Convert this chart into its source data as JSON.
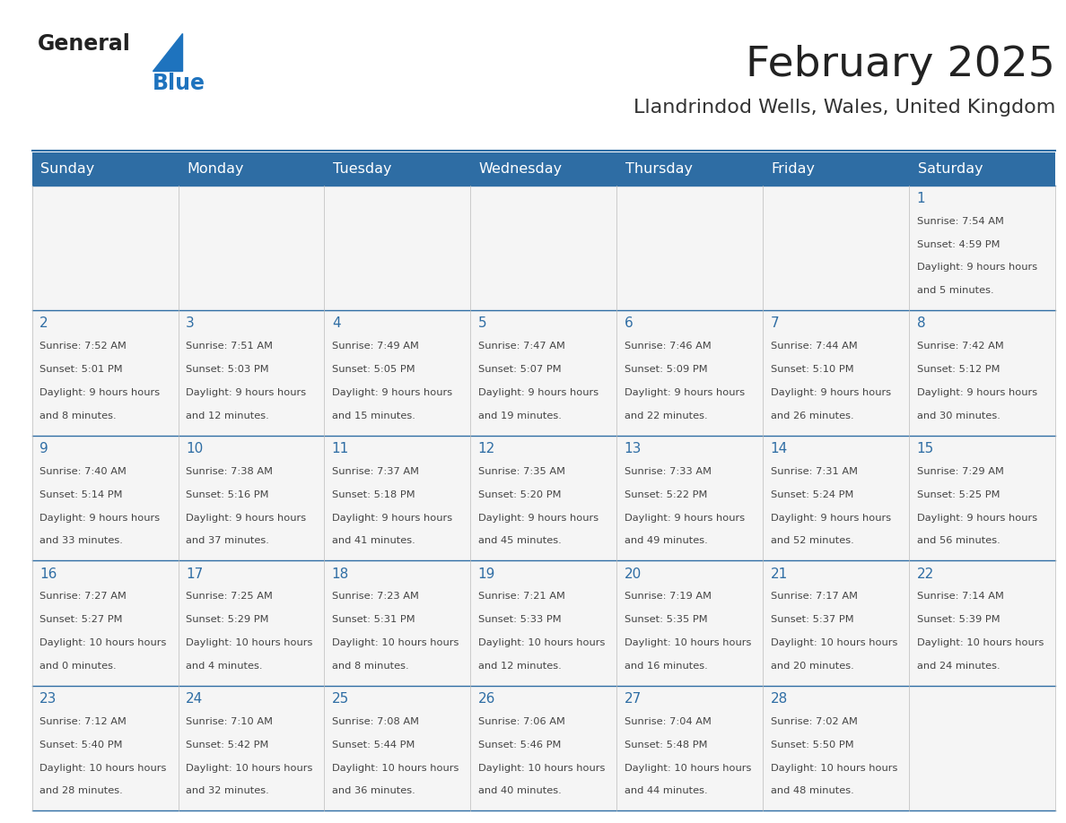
{
  "title": "February 2025",
  "subtitle": "Llandrindod Wells, Wales, United Kingdom",
  "days_of_week": [
    "Sunday",
    "Monday",
    "Tuesday",
    "Wednesday",
    "Thursday",
    "Friday",
    "Saturday"
  ],
  "header_bg": "#2E6DA4",
  "header_text": "#FFFFFF",
  "cell_bg": "#F5F5F5",
  "grid_line_color": "#2E6DA4",
  "day_number_color": "#2E6DA4",
  "info_text_color": "#444444",
  "title_color": "#222222",
  "subtitle_color": "#333333",
  "logo_general_color": "#222222",
  "logo_blue_color": "#1E73BE",
  "calendar_data": [
    [
      {
        "day": null,
        "sunrise": null,
        "sunset": null,
        "daylight": null
      },
      {
        "day": null,
        "sunrise": null,
        "sunset": null,
        "daylight": null
      },
      {
        "day": null,
        "sunrise": null,
        "sunset": null,
        "daylight": null
      },
      {
        "day": null,
        "sunrise": null,
        "sunset": null,
        "daylight": null
      },
      {
        "day": null,
        "sunrise": null,
        "sunset": null,
        "daylight": null
      },
      {
        "day": null,
        "sunrise": null,
        "sunset": null,
        "daylight": null
      },
      {
        "day": 1,
        "sunrise": "7:54 AM",
        "sunset": "4:59 PM",
        "daylight": "9 hours and 5 minutes."
      }
    ],
    [
      {
        "day": 2,
        "sunrise": "7:52 AM",
        "sunset": "5:01 PM",
        "daylight": "9 hours and 8 minutes."
      },
      {
        "day": 3,
        "sunrise": "7:51 AM",
        "sunset": "5:03 PM",
        "daylight": "9 hours and 12 minutes."
      },
      {
        "day": 4,
        "sunrise": "7:49 AM",
        "sunset": "5:05 PM",
        "daylight": "9 hours and 15 minutes."
      },
      {
        "day": 5,
        "sunrise": "7:47 AM",
        "sunset": "5:07 PM",
        "daylight": "9 hours and 19 minutes."
      },
      {
        "day": 6,
        "sunrise": "7:46 AM",
        "sunset": "5:09 PM",
        "daylight": "9 hours and 22 minutes."
      },
      {
        "day": 7,
        "sunrise": "7:44 AM",
        "sunset": "5:10 PM",
        "daylight": "9 hours and 26 minutes."
      },
      {
        "day": 8,
        "sunrise": "7:42 AM",
        "sunset": "5:12 PM",
        "daylight": "9 hours and 30 minutes."
      }
    ],
    [
      {
        "day": 9,
        "sunrise": "7:40 AM",
        "sunset": "5:14 PM",
        "daylight": "9 hours and 33 minutes."
      },
      {
        "day": 10,
        "sunrise": "7:38 AM",
        "sunset": "5:16 PM",
        "daylight": "9 hours and 37 minutes."
      },
      {
        "day": 11,
        "sunrise": "7:37 AM",
        "sunset": "5:18 PM",
        "daylight": "9 hours and 41 minutes."
      },
      {
        "day": 12,
        "sunrise": "7:35 AM",
        "sunset": "5:20 PM",
        "daylight": "9 hours and 45 minutes."
      },
      {
        "day": 13,
        "sunrise": "7:33 AM",
        "sunset": "5:22 PM",
        "daylight": "9 hours and 49 minutes."
      },
      {
        "day": 14,
        "sunrise": "7:31 AM",
        "sunset": "5:24 PM",
        "daylight": "9 hours and 52 minutes."
      },
      {
        "day": 15,
        "sunrise": "7:29 AM",
        "sunset": "5:25 PM",
        "daylight": "9 hours and 56 minutes."
      }
    ],
    [
      {
        "day": 16,
        "sunrise": "7:27 AM",
        "sunset": "5:27 PM",
        "daylight": "10 hours and 0 minutes."
      },
      {
        "day": 17,
        "sunrise": "7:25 AM",
        "sunset": "5:29 PM",
        "daylight": "10 hours and 4 minutes."
      },
      {
        "day": 18,
        "sunrise": "7:23 AM",
        "sunset": "5:31 PM",
        "daylight": "10 hours and 8 minutes."
      },
      {
        "day": 19,
        "sunrise": "7:21 AM",
        "sunset": "5:33 PM",
        "daylight": "10 hours and 12 minutes."
      },
      {
        "day": 20,
        "sunrise": "7:19 AM",
        "sunset": "5:35 PM",
        "daylight": "10 hours and 16 minutes."
      },
      {
        "day": 21,
        "sunrise": "7:17 AM",
        "sunset": "5:37 PM",
        "daylight": "10 hours and 20 minutes."
      },
      {
        "day": 22,
        "sunrise": "7:14 AM",
        "sunset": "5:39 PM",
        "daylight": "10 hours and 24 minutes."
      }
    ],
    [
      {
        "day": 23,
        "sunrise": "7:12 AM",
        "sunset": "5:40 PM",
        "daylight": "10 hours and 28 minutes."
      },
      {
        "day": 24,
        "sunrise": "7:10 AM",
        "sunset": "5:42 PM",
        "daylight": "10 hours and 32 minutes."
      },
      {
        "day": 25,
        "sunrise": "7:08 AM",
        "sunset": "5:44 PM",
        "daylight": "10 hours and 36 minutes."
      },
      {
        "day": 26,
        "sunrise": "7:06 AM",
        "sunset": "5:46 PM",
        "daylight": "10 hours and 40 minutes."
      },
      {
        "day": 27,
        "sunrise": "7:04 AM",
        "sunset": "5:48 PM",
        "daylight": "10 hours and 44 minutes."
      },
      {
        "day": 28,
        "sunrise": "7:02 AM",
        "sunset": "5:50 PM",
        "daylight": "10 hours and 48 minutes."
      },
      {
        "day": null,
        "sunrise": null,
        "sunset": null,
        "daylight": null
      }
    ]
  ]
}
